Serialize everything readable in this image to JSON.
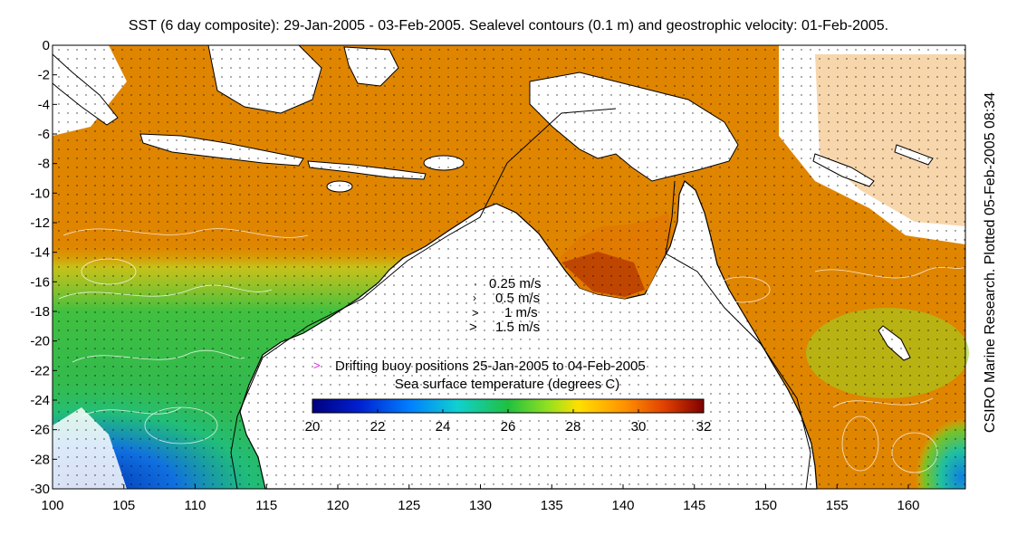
{
  "title": "SST (6 day composite): 29-Jan-2005 - 03-Feb-2005. Sealevel contours (0.1 m) and geostrophic velocity: 01-Feb-2005.",
  "credit": "CSIRO Marine Research. Plotted 05-Feb-2005 08:34",
  "map": {
    "lon_range": [
      100,
      164
    ],
    "lat_range": [
      -30,
      0
    ],
    "lon_ticks": [
      100,
      105,
      110,
      115,
      120,
      125,
      130,
      135,
      140,
      145,
      150,
      155,
      160
    ],
    "lat_ticks": [
      0,
      -2,
      -4,
      -6,
      -8,
      -10,
      -12,
      -14,
      -16,
      -18,
      -20,
      -22,
      -24,
      -26,
      -28,
      -30
    ]
  },
  "velocity_legend": [
    "0.25 m/s",
    "0.5 m/s",
    "1 m/s",
    "1.5 m/s"
  ],
  "buoy_label": "Drifting buoy positions 25-Jan-2005 to 04-Feb-2005",
  "colorbar": {
    "label": "Sea surface temperature (degrees C)",
    "ticks": [
      20,
      22,
      24,
      26,
      28,
      30,
      32
    ],
    "range": [
      20,
      32
    ]
  },
  "colors": {
    "land": "#ffffff",
    "buoy": "#e020e0"
  }
}
